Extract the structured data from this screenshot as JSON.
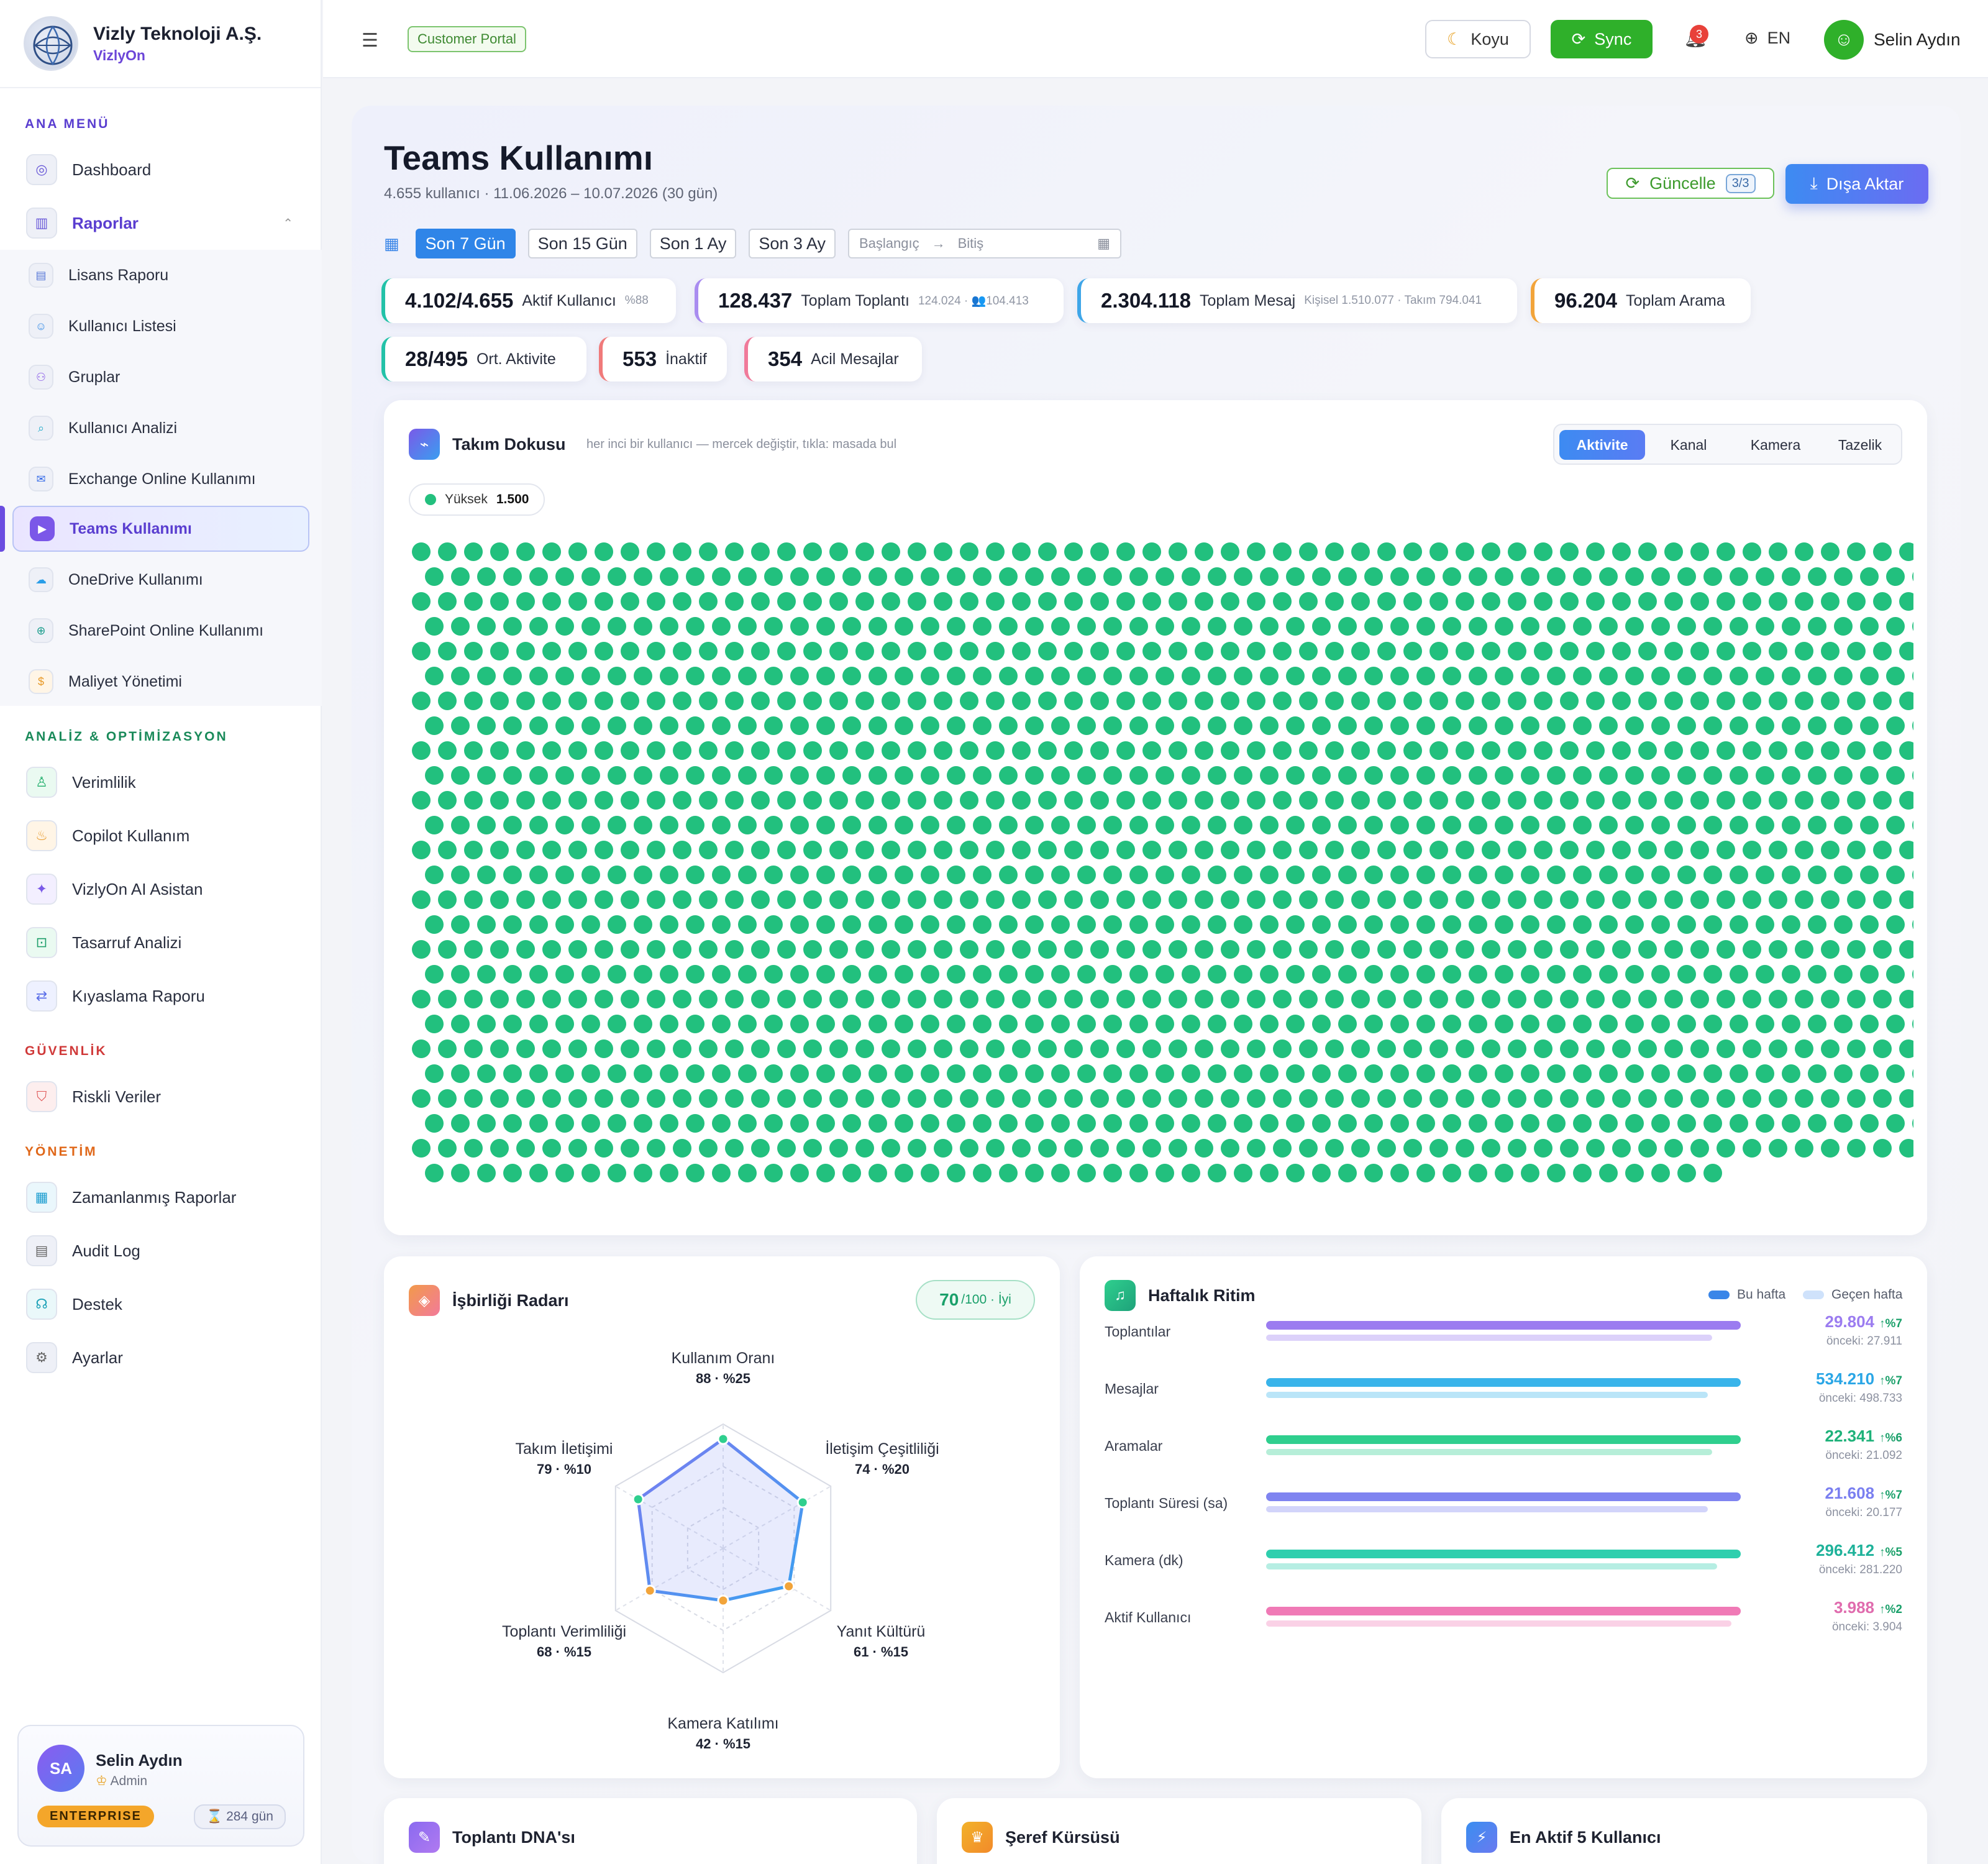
{
  "brand": {
    "name": "Vizly Teknoloji A.Ş.",
    "product": "VizlyOn"
  },
  "sidebar": {
    "sections": {
      "main": "ANA MENÜ",
      "analysis": "ANALİZ & OPTİMİZASYON",
      "security": "GÜVENLİK",
      "management": "YÖNETİM"
    },
    "items": {
      "dashboard": "Dashboard",
      "reports": "Raporlar",
      "license": "Lisans Raporu",
      "users": "Kullanıcı Listesi",
      "groups": "Gruplar",
      "user_analysis": "Kullanıcı Analizi",
      "exchange": "Exchange Online Kullanımı",
      "teams": "Teams Kullanımı",
      "onedrive": "OneDrive Kullanımı",
      "sharepoint": "SharePoint Online Kullanımı",
      "cost": "Maliyet Yönetimi",
      "efficiency": "Verimlilik",
      "copilot": "Copilot Kullanım",
      "ai": "VizlyOn AI Asistan",
      "savings": "Tasarruf Analizi",
      "benchmark": "Kıyaslama Raporu",
      "risky": "Riskli Veriler",
      "scheduled": "Zamanlanmış Raporlar",
      "audit": "Audit Log",
      "support": "Destek",
      "settings": "Ayarlar"
    },
    "user": {
      "initials": "SA",
      "name": "Selin Aydın",
      "role": "Admin",
      "plan": "ENTERPRISE",
      "days": "284 gün"
    }
  },
  "topbar": {
    "portal": "Customer Portal",
    "theme_label": "Koyu",
    "sync_label": "Sync",
    "notifications": "3",
    "language": "EN",
    "user_name": "Selin Aydın"
  },
  "page": {
    "title": "Teams Kullanımı",
    "subtitle": "4.655 kullanıcı · 11.06.2026 – 10.07.2026 (30 gün)",
    "refresh_label": "Güncelle",
    "refresh_count": "3/3",
    "export_label": "Dışa Aktar"
  },
  "range": {
    "options": [
      "Son 7 Gün",
      "Son 15 Gün",
      "Son 1 Ay",
      "Son 3 Ay"
    ],
    "selected": "Son 7 Gün",
    "start_placeholder": "Başlangıç",
    "arrow": "→",
    "end_placeholder": "Bitiş"
  },
  "kpis": [
    {
      "value": "4.102/4.655",
      "label": "Aktif Kullanıcı",
      "note": "%88",
      "color": "#22c2a8"
    },
    {
      "value": "128.437",
      "label": "Toplam Toplantı",
      "note": "124.024 · 👥104.413",
      "color": "#a98cf0"
    },
    {
      "value": "2.304.118",
      "label": "Toplam Mesaj",
      "note": "Kişisel 1.510.077 · Takım 794.041",
      "color": "#3fa6e8"
    },
    {
      "value": "96.204",
      "label": "Toplam Arama",
      "note": "",
      "color": "#f2a43a"
    },
    {
      "value": "28/495",
      "label": "Ort. Aktivite",
      "note": "",
      "color": "#22c2a8"
    },
    {
      "value": "553",
      "label": "İnaktif",
      "note": "",
      "color": "#f07a7a"
    },
    {
      "value": "354",
      "label": "Acil Mesajlar",
      "note": "",
      "color": "#f07a9a"
    }
  ],
  "fabric": {
    "title": "Takım Dokusu",
    "hint": "her inci bir kullanıcı — mercek değiştir, tıkla: masada bul",
    "tabs": [
      "Aktivite",
      "Kanal",
      "Kamera",
      "Tazelik"
    ],
    "active_tab": "Aktivite",
    "legend_label": "Yüksek",
    "legend_count": "1.500",
    "dot_color": "#22c07e",
    "dot_count": 1500
  },
  "radar": {
    "title": "İşbirliği Radarı",
    "score": "70",
    "score_suffix": "/100 · İyi",
    "axes": [
      {
        "name": "Kullanım Oranı",
        "detail": "88 · %25",
        "value": 88
      },
      {
        "name": "İletişim Çeşitliliği",
        "detail": "74 · %20",
        "value": 74
      },
      {
        "name": "Yanıt Kültürü",
        "detail": "61 · %15",
        "value": 61
      },
      {
        "name": "Kamera Katılımı",
        "detail": "42 · %15",
        "value": 42
      },
      {
        "name": "Toplantı Verimliliği",
        "detail": "68 · %15",
        "value": 68
      },
      {
        "name": "Takım İletişimi",
        "detail": "79 · %10",
        "value": 79
      }
    ]
  },
  "rhythm": {
    "title": "Haftalık Ritim",
    "legend_current": "Bu hafta",
    "legend_previous": "Geçen hafta",
    "rows": [
      {
        "label": "Toplantılar",
        "value": "29.804",
        "change": "↑%7",
        "previous": "önceki: 27.911",
        "fill": 1.0,
        "prev_fill": 0.94,
        "color": "#9b7cf0",
        "value_color": "#9b7cf0"
      },
      {
        "label": "Mesajlar",
        "value": "534.210",
        "change": "↑%7",
        "previous": "önceki: 498.733",
        "fill": 1.0,
        "prev_fill": 0.93,
        "color": "#39b4ea",
        "value_color": "#2aa6e6"
      },
      {
        "label": "Aramalar",
        "value": "22.341",
        "change": "↑%6",
        "previous": "önceki: 21.092",
        "fill": 1.0,
        "prev_fill": 0.94,
        "color": "#2fcf8e",
        "value_color": "#1eb27a"
      },
      {
        "label": "Toplantı Süresi (sa)",
        "value": "21.608",
        "change": "↑%7",
        "previous": "önceki: 20.177",
        "fill": 1.0,
        "prev_fill": 0.93,
        "color": "#7f84f0",
        "value_color": "#7a7ff0"
      },
      {
        "label": "Kamera (dk)",
        "value": "296.412",
        "change": "↑%5",
        "previous": "önceki: 281.220",
        "fill": 1.0,
        "prev_fill": 0.95,
        "color": "#2fcfae",
        "value_color": "#1eb29a"
      },
      {
        "label": "Aktif Kullanıcı",
        "value": "3.988",
        "change": "↑%2",
        "previous": "önceki: 3.904",
        "fill": 1.0,
        "prev_fill": 0.98,
        "color": "#f07ab6",
        "value_color": "#e06cae"
      }
    ]
  },
  "bottom_cards": [
    "Toplantı DNA'sı",
    "Şeref Kürsüsü",
    "En Aktif 5 Kullanıcı"
  ]
}
